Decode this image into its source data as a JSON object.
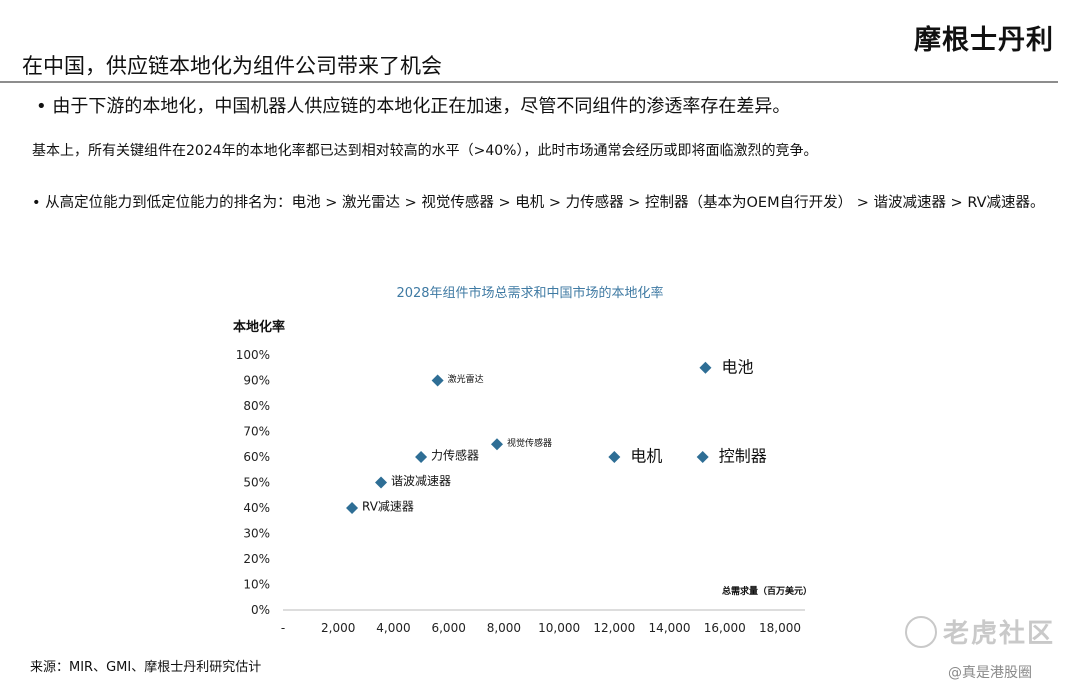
{
  "header": {
    "brand": "摩根士丹利",
    "title": "在中国，供应链本地化为组件公司带来了机会"
  },
  "body": {
    "bullet_1": "• 由于下游的本地化，中国机器人供应链的本地化正在加速，尽管不同组件的渗透率存在差异。",
    "paragraph": "基本上，所有关键组件在2024年的本地化率都已达到相对较高的水平（>40%），此时市场通常会经历或即将面临激烈的竞争。",
    "bullet_2": "• 从高定位能力到低定位能力的排名为：电池 > 激光雷达 > 视觉传感器 > 电机 > 力传感器 > 控制器（基本为OEM自行开发） > 谐波减速器 > RV减速器。"
  },
  "footer": {
    "source": "来源：MIR、GMI、摩根士丹利研究估计",
    "watermark": "老虎社区",
    "handle": "@真是港股圈"
  },
  "chart_data": {
    "type": "scatter",
    "title": "2028年组件市场总需求和中国市场的本地化率",
    "xlabel": "总需求量（百万美元）",
    "ylabel": "本地化率",
    "x_ticks": [
      "-",
      "2,000",
      "4,000",
      "6,000",
      "8,000",
      "10,000",
      "12,000",
      "14,000",
      "16,000",
      "18,000"
    ],
    "y_ticks": [
      "0%",
      "10%",
      "20%",
      "30%",
      "40%",
      "50%",
      "60%",
      "70%",
      "80%",
      "90%",
      "100%"
    ],
    "xlim": [
      0,
      18000
    ],
    "ylim": [
      0,
      100
    ],
    "grid": false,
    "marker_color": "#2e6e95",
    "title_color": "#3f7aa3",
    "points": [
      {
        "label": "电池",
        "x": 15300,
        "y": 95,
        "label_size": "large"
      },
      {
        "label": "激光雷达",
        "x": 5600,
        "y": 90,
        "label_size": "small"
      },
      {
        "label": "视觉传感器",
        "x": 7750,
        "y": 65,
        "label_size": "small"
      },
      {
        "label": "力传感器",
        "x": 5000,
        "y": 60,
        "label_size": "medium"
      },
      {
        "label": "电机",
        "x": 12000,
        "y": 60,
        "label_size": "large"
      },
      {
        "label": "控制器",
        "x": 15200,
        "y": 60,
        "label_size": "large"
      },
      {
        "label": "谐波减速器",
        "x": 3550,
        "y": 50,
        "label_size": "medium"
      },
      {
        "label": "RV减速器",
        "x": 2500,
        "y": 40,
        "label_size": "medium"
      }
    ]
  }
}
